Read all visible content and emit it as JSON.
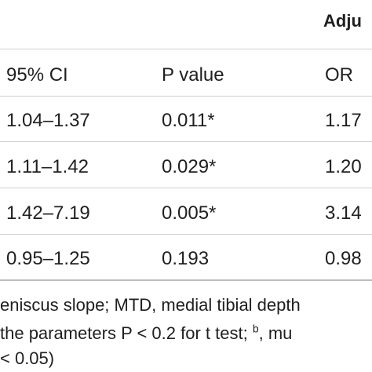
{
  "header": {
    "adjusted_label": "Adju"
  },
  "columns": {
    "ci": "95% CI",
    "p": "P value",
    "or": "OR"
  },
  "rows": [
    {
      "ci": "1.04–1.37",
      "p": "0.011*",
      "or": "1.17"
    },
    {
      "ci": "1.11–1.42",
      "p": "0.029*",
      "or": "1.20"
    },
    {
      "ci": "1.42–7.19",
      "p": "0.005*",
      "or": "3.14"
    },
    {
      "ci": "0.95–1.25",
      "p": "0.193",
      "or": "0.98"
    }
  ],
  "footnotes": {
    "line1": "eniscus slope; MTD, medial tibial depth",
    "line2_pre": " the parameters P < 0.2 for t test; ",
    "line2_sup": "b",
    "line2_post": ", mu",
    "line3": "< 0.05)"
  }
}
